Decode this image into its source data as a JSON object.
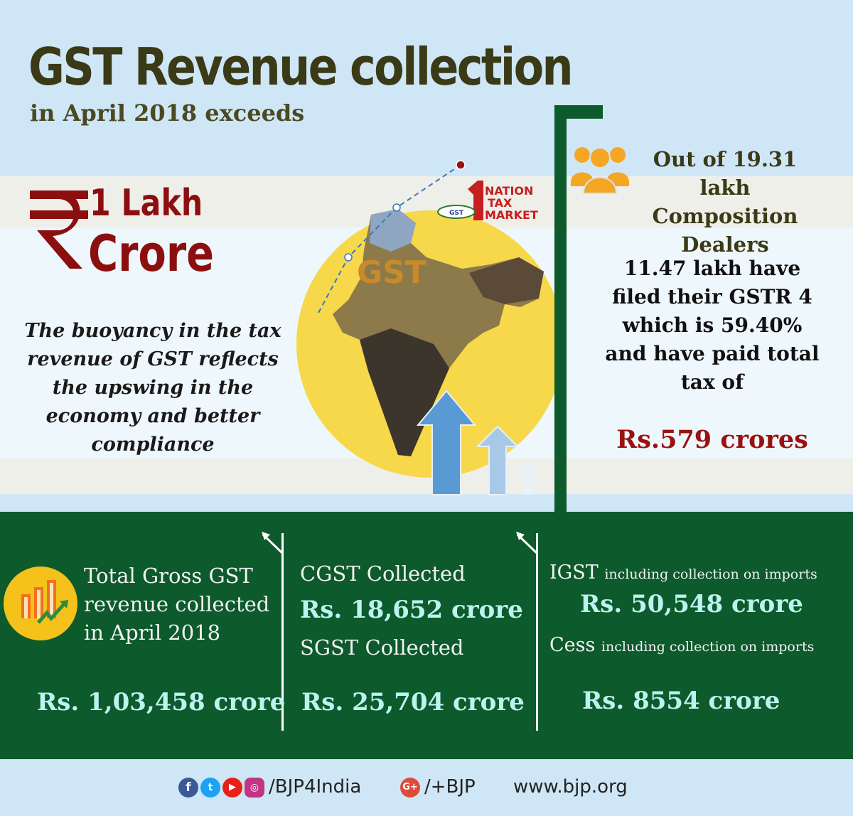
{
  "header": {
    "title": "GST Revenue collection",
    "subtitle": "in April 2018 exceeds"
  },
  "headline": {
    "currency_symbol": "₹",
    "line1": "1 Lakh",
    "line2": "Crore"
  },
  "buoyancy_text": "The buoyancy in the tax revenue of GST reflects the upswing in the economy and better compliance",
  "center_visual": {
    "map_label": "GST",
    "logo_lines": [
      "NATION",
      "TAX",
      "MARKET"
    ],
    "logo_badge": "GST"
  },
  "dealers": {
    "heading": "Out of 19.31 lakh Composition Dealers",
    "body": "11.47 lakh have filed their GSTR 4 which is 59.40% and have paid total tax of",
    "amount": "Rs.579 crores"
  },
  "collections": {
    "total": {
      "label_lines": [
        "Total Gross GST",
        "revenue collected",
        "in April 2018"
      ],
      "value": "Rs. 1,03,458 crore"
    },
    "cgst": {
      "label": "CGST Collected",
      "value": "Rs. 18,652 crore"
    },
    "sgst": {
      "label": "SGST Collected",
      "value": "Rs. 25,704 crore"
    },
    "igst": {
      "label": "IGST",
      "note": "including collection on imports",
      "value": "Rs. 50,548 crore"
    },
    "cess": {
      "label": "Cess",
      "note": "including collection on imports",
      "value": "Rs. 8554 crore"
    }
  },
  "footer": {
    "social_handle": "/BJP4India",
    "gplus_handle": "/+BJP",
    "website": "www.bjp.org",
    "icons": [
      "facebook-icon",
      "twitter-icon",
      "youtube-icon",
      "instagram-icon",
      "google-plus-icon"
    ]
  },
  "colors": {
    "dark_green": "#0d5a2c",
    "maroon": "#8c0f10",
    "light_blue": "#cfe6f6",
    "cyan_text": "#bdf3ef",
    "yellow": "#f7d84a"
  }
}
